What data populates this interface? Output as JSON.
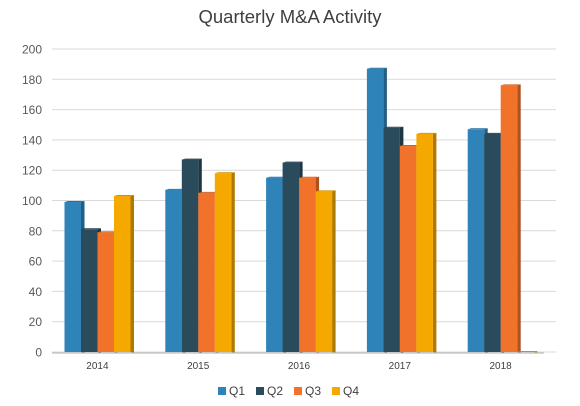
{
  "chart_data": {
    "type": "bar",
    "title": "Quarterly M&A Activity",
    "categories": [
      "2014",
      "2015",
      "2016",
      "2017",
      "2018"
    ],
    "series": [
      {
        "name": "Q1",
        "color": "#2E83B9",
        "values": [
          99,
          107,
          115,
          187,
          147
        ]
      },
      {
        "name": "Q2",
        "color": "#2A4B5C",
        "values": [
          81,
          127,
          125,
          148,
          144
        ]
      },
      {
        "name": "Q3",
        "color": "#F0722B",
        "values": [
          79,
          105,
          115,
          136,
          176
        ]
      },
      {
        "name": "Q4",
        "color": "#F5A900",
        "values": [
          103,
          118,
          106,
          144,
          0
        ]
      }
    ],
    "ylim": [
      0,
      200
    ],
    "yticks": [
      0,
      20,
      40,
      60,
      80,
      100,
      120,
      140,
      160,
      180,
      200
    ],
    "grid": true,
    "legend_position": "bottom"
  }
}
